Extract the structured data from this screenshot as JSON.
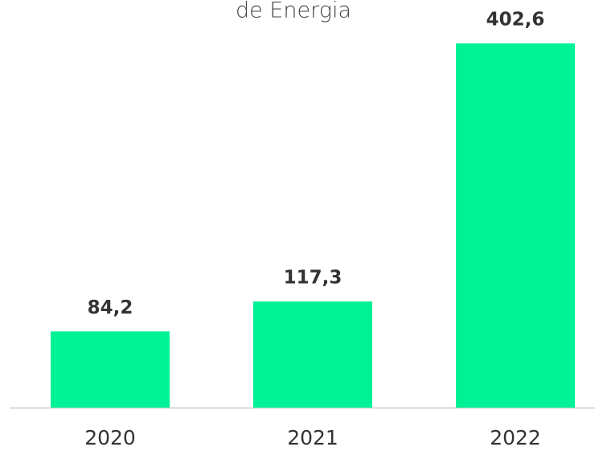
{
  "chart_data": {
    "type": "bar",
    "title": "de Energia",
    "categories": [
      "2020",
      "2021",
      "2022"
    ],
    "values": [
      84.2,
      117.3,
      402.6
    ],
    "value_labels": [
      "84,2",
      "117,3",
      "402,6"
    ],
    "color": "#00f296"
  }
}
